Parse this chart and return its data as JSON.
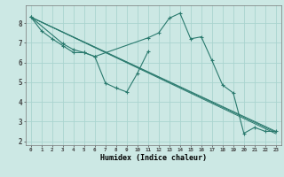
{
  "title": "",
  "xlabel": "Humidex (Indice chaleur)",
  "bg_color": "#cce8e4",
  "grid_color": "#aad4cf",
  "line_color": "#2a7a6e",
  "xlim": [
    -0.5,
    23.5
  ],
  "ylim": [
    1.8,
    8.9
  ],
  "xticks": [
    0,
    1,
    2,
    3,
    4,
    5,
    6,
    7,
    8,
    9,
    10,
    11,
    12,
    13,
    14,
    15,
    16,
    17,
    18,
    19,
    20,
    21,
    22,
    23
  ],
  "yticks": [
    2,
    3,
    4,
    5,
    6,
    7,
    8
  ],
  "series": [
    {
      "x": [
        0,
        1,
        2,
        3,
        4,
        5,
        6,
        7,
        8,
        9,
        10,
        11
      ],
      "y": [
        8.3,
        7.6,
        7.2,
        6.85,
        6.5,
        6.5,
        6.3,
        4.95,
        4.7,
        4.5,
        5.45,
        6.55
      ]
    },
    {
      "x": [
        0,
        3,
        4,
        5,
        6,
        11,
        12,
        13,
        14,
        15,
        16,
        17,
        18,
        19,
        20,
        21,
        22,
        23
      ],
      "y": [
        8.3,
        6.95,
        6.65,
        6.5,
        6.3,
        7.25,
        7.5,
        8.25,
        8.5,
        7.2,
        7.3,
        6.1,
        4.85,
        4.45,
        2.4,
        2.7,
        2.5,
        2.5
      ]
    },
    {
      "x": [
        0,
        23
      ],
      "y": [
        8.3,
        2.5
      ]
    },
    {
      "x": [
        0,
        23
      ],
      "y": [
        8.3,
        2.45
      ]
    },
    {
      "x": [
        0,
        23
      ],
      "y": [
        8.3,
        2.38
      ]
    }
  ]
}
